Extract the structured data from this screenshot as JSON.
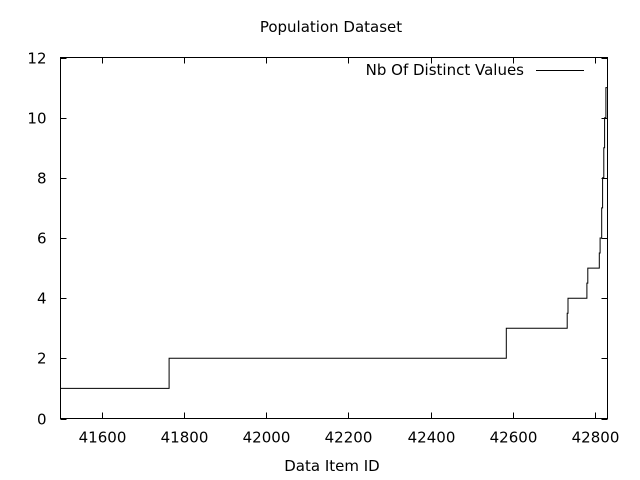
{
  "chart_data": {
    "type": "line",
    "title": "Population Dataset",
    "xlabel": "Data Item ID",
    "ylabel": "",
    "xlim": [
      41500,
      42830
    ],
    "ylim": [
      0,
      12
    ],
    "x_ticks": [
      41600,
      41800,
      42000,
      42200,
      42400,
      42600,
      42800
    ],
    "x_tick_labels": [
      "41600",
      "41800",
      "42000",
      "42200",
      "42400",
      "42600",
      "42800"
    ],
    "y_ticks": [
      0,
      2,
      4,
      6,
      8,
      10,
      12
    ],
    "y_tick_labels": [
      "0",
      "2",
      "4",
      "6",
      "8",
      "10",
      "12"
    ],
    "grid": false,
    "legend_position": "top-right",
    "series": [
      {
        "name": "Nb Of Distinct Values",
        "color": "#000000",
        "step": true,
        "points": [
          [
            41500,
            1
          ],
          [
            41764,
            2
          ],
          [
            42584,
            3
          ],
          [
            42732,
            3.5
          ],
          [
            42734,
            4
          ],
          [
            42780,
            4.5
          ],
          [
            42782,
            5
          ],
          [
            42810,
            5.5
          ],
          [
            42812,
            6
          ],
          [
            42816,
            7
          ],
          [
            42818,
            8
          ],
          [
            42821,
            9
          ],
          [
            42823,
            10
          ],
          [
            42826,
            11
          ]
        ]
      }
    ]
  }
}
